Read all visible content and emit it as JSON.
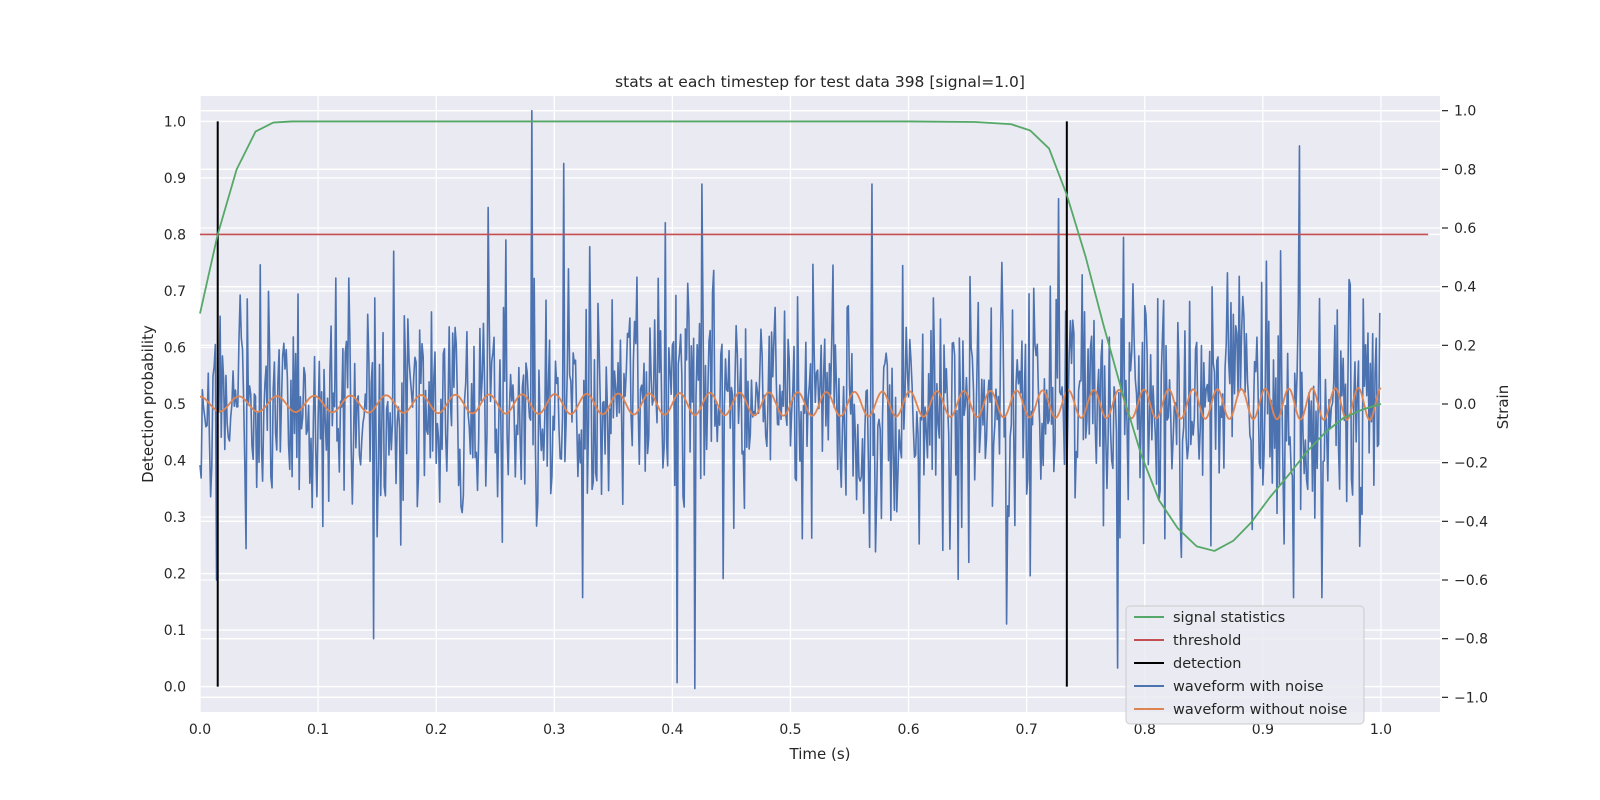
{
  "chart_data": {
    "type": "line",
    "title": "stats at each timestep for test data 398 [signal=1.0]",
    "xlabel": "Time (s)",
    "ylabel": "Detection probability",
    "y2label": "Strain",
    "xlim": [
      0.0,
      1.05
    ],
    "ylim": [
      -0.045,
      1.045
    ],
    "y2lim": [
      -1.05,
      1.05
    ],
    "grid": true,
    "legend_position": "lower right",
    "xticks": [
      "0.0",
      "0.1",
      "0.2",
      "0.3",
      "0.4",
      "0.5",
      "0.6",
      "0.7",
      "0.8",
      "0.9",
      "1.0"
    ],
    "yticks": [
      "0.0",
      "0.1",
      "0.2",
      "0.3",
      "0.4",
      "0.5",
      "0.6",
      "0.7",
      "0.8",
      "0.9",
      "1.0"
    ],
    "y2ticks": [
      "−1.0",
      "−0.8",
      "−0.6",
      "−0.4",
      "−0.2",
      "0.0",
      "0.2",
      "0.4",
      "0.6",
      "0.8",
      "1.0"
    ],
    "series": [
      {
        "name": "signal statistics",
        "axis": "left",
        "color": "#55a868",
        "x": [
          0.0,
          0.015,
          0.031,
          0.047,
          0.062,
          0.078,
          0.1,
          0.2,
          0.3,
          0.4,
          0.5,
          0.6,
          0.656,
          0.672,
          0.687,
          0.703,
          0.719,
          0.734,
          0.75,
          0.765,
          0.781,
          0.797,
          0.812,
          0.828,
          0.844,
          0.859,
          0.875,
          0.89,
          0.906,
          0.922,
          0.937,
          0.953,
          0.968,
          0.984,
          1.0
        ],
        "y": [
          0.66,
          0.8,
          0.915,
          0.982,
          0.998,
          1.0,
          1.0,
          1.0,
          1.0,
          1.0,
          1.0,
          1.0,
          0.999,
          0.997,
          0.995,
          0.984,
          0.952,
          0.87,
          0.76,
          0.64,
          0.52,
          0.41,
          0.33,
          0.28,
          0.248,
          0.24,
          0.258,
          0.29,
          0.335,
          0.375,
          0.415,
          0.45,
          0.475,
          0.49,
          0.5
        ]
      },
      {
        "name": "threshold",
        "axis": "left",
        "color": "#c44e52",
        "x": [
          0.0,
          1.04
        ],
        "y": [
          0.8,
          0.8
        ]
      },
      {
        "name": "detection",
        "axis": "left",
        "color": "#000000",
        "x_positions": [
          0.015,
          0.734
        ],
        "y_range": [
          0.0,
          1.0
        ]
      },
      {
        "name": "waveform with noise",
        "axis": "right",
        "color": "#4c72b0",
        "x_range": [
          0.0,
          0.999
        ],
        "points": 1000,
        "std_estimate": 0.21,
        "min": -0.97,
        "max": 1.0,
        "spikes": [
          {
            "x": 0.014,
            "y": -0.6
          },
          {
            "x": 0.147,
            "y": -0.8
          },
          {
            "x": 0.244,
            "y": 0.67
          },
          {
            "x": 0.281,
            "y": 1.0
          },
          {
            "x": 0.308,
            "y": 0.82
          },
          {
            "x": 0.404,
            "y": -0.95
          },
          {
            "x": 0.419,
            "y": -0.97
          },
          {
            "x": 0.425,
            "y": 0.75
          },
          {
            "x": 0.569,
            "y": 0.75
          },
          {
            "x": 0.683,
            "y": -0.75
          },
          {
            "x": 0.727,
            "y": 0.7
          },
          {
            "x": 0.777,
            "y": -0.9
          },
          {
            "x": 0.931,
            "y": 0.88
          }
        ]
      },
      {
        "name": "waveform without noise",
        "axis": "right",
        "color": "#dd8452",
        "x_range": [
          0.0,
          1.0
        ],
        "amplitude_start": 0.025,
        "amplitude_end": 0.055,
        "frequency_start_hz": 30,
        "frequency_end_hz": 52
      }
    ]
  }
}
